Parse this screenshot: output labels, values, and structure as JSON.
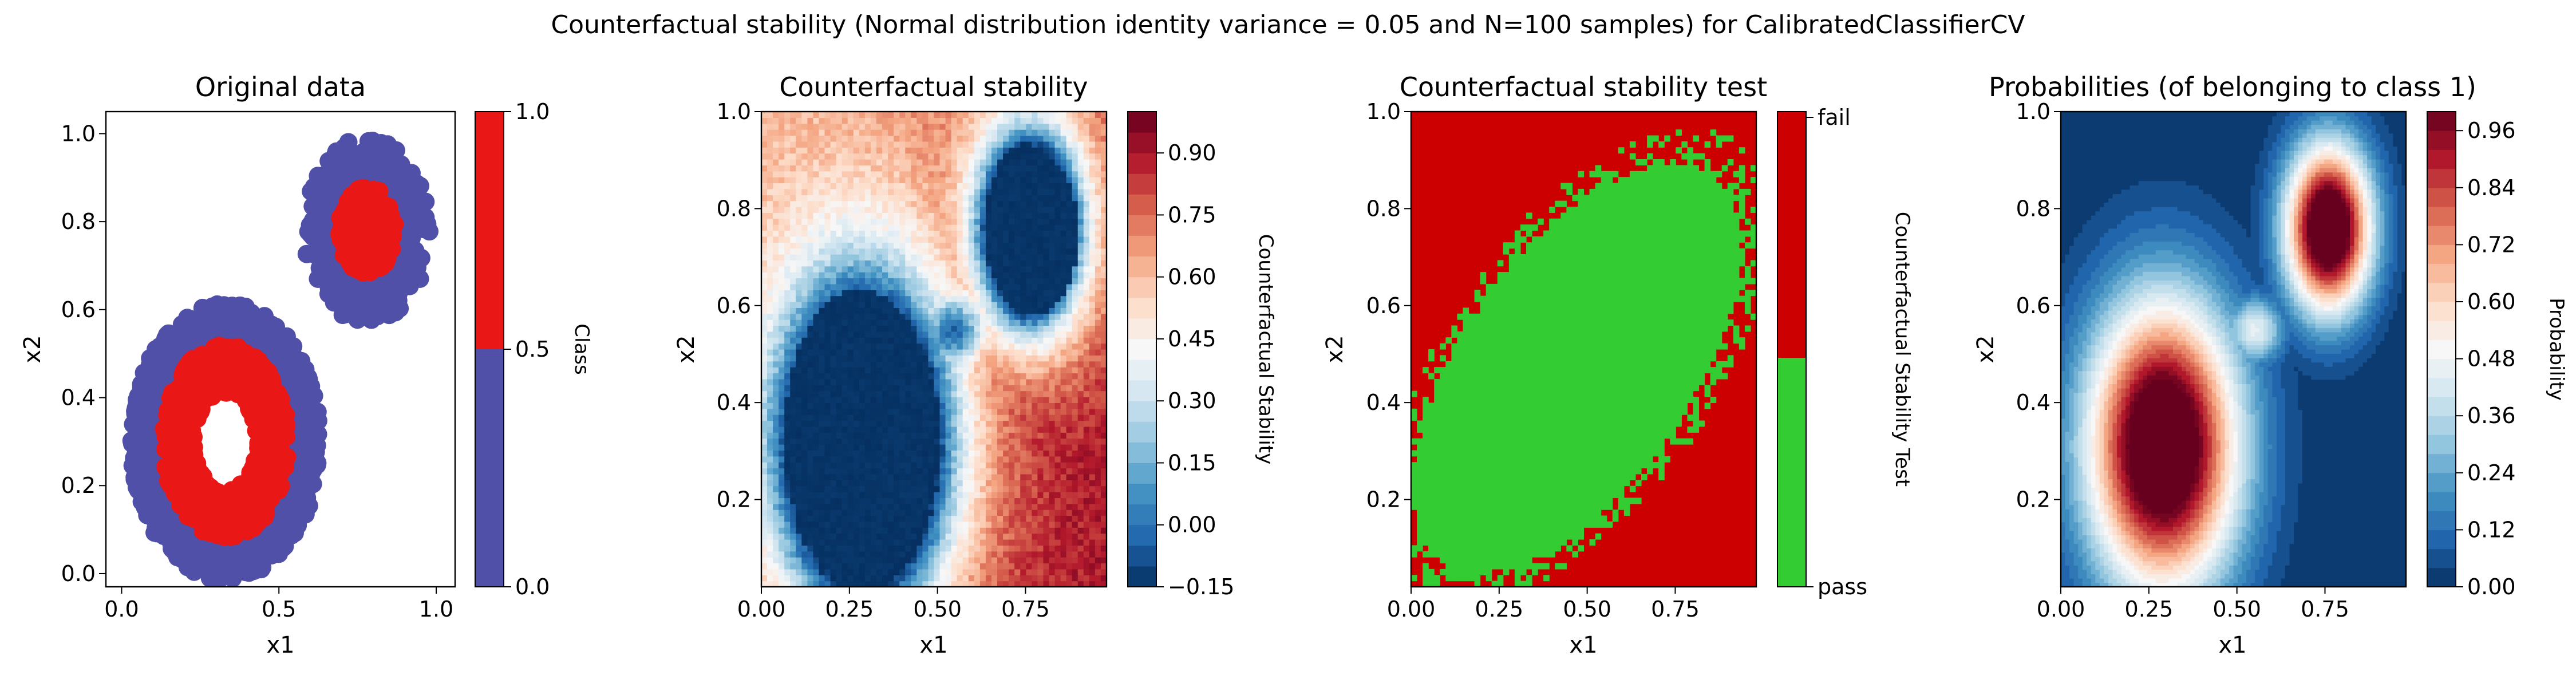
{
  "suptitle": "Counterfactual stability (Normal distribution identity variance = 0.05 and N=100 samples) for CalibratedClassifierCV",
  "colors": {
    "class0": "#5150A8",
    "class1": "#EA1717",
    "fail": "#CC0000",
    "pass": "#33CC33",
    "rdbu": [
      "#053061",
      "#2166ac",
      "#4393c3",
      "#92c5de",
      "#d1e5f0",
      "#f7f7f7",
      "#fddbc7",
      "#f4a582",
      "#d6604d",
      "#b2182b",
      "#67001f"
    ]
  },
  "chart_data": [
    {
      "type": "scatter",
      "title": "Original data",
      "xlabel": "x1",
      "ylabel": "x2",
      "xlim": [
        -0.05,
        1.06
      ],
      "ylim": [
        -0.03,
        1.05
      ],
      "xticks": [
        0.0,
        0.5,
        1.0
      ],
      "xticklabels": [
        "0.0",
        "0.5",
        "1.0"
      ],
      "yticks": [
        0.0,
        0.2,
        0.4,
        0.6,
        0.8,
        1.0
      ],
      "yticklabels": [
        "0.0",
        "0.2",
        "0.4",
        "0.6",
        "0.8",
        "1.0"
      ],
      "clusters": [
        {
          "center": [
            0.33,
            0.3
          ],
          "outer_radius": [
            0.2,
            0.3
          ],
          "inner_radius": [
            0.1,
            0.2
          ],
          "class_outer": 0,
          "class_inner": 1
        },
        {
          "center": [
            0.78,
            0.78
          ],
          "outer_radius": [
            0.08,
            0.2
          ],
          "inner_radius": [
            0.02,
            0.09
          ],
          "class_outer": 0,
          "class_inner": 1
        }
      ],
      "colorbar": {
        "label": "Class",
        "ticks": [
          "0.0",
          "0.5",
          "1.0"
        ]
      }
    },
    {
      "type": "heatmap",
      "title": "Counterfactual stability",
      "xlabel": "x1",
      "ylabel": "x2",
      "xlim": [
        0.0,
        0.98
      ],
      "ylim": [
        0.02,
        1.0
      ],
      "xticks": [
        0.0,
        0.25,
        0.5,
        0.75
      ],
      "xticklabels": [
        "0.00",
        "0.25",
        "0.50",
        "0.75"
      ],
      "yticks": [
        0.2,
        0.4,
        0.6,
        0.8,
        1.0
      ],
      "yticklabels": [
        "0.2",
        "0.4",
        "0.6",
        "0.8",
        "1.0"
      ],
      "value_range": [
        -0.15,
        1.0
      ],
      "colorbar": {
        "label": "Counterfactual Stability",
        "ticks": [
          "−0.15",
          "0.00",
          "0.15",
          "0.30",
          "0.45",
          "0.60",
          "0.75",
          "0.90"
        ]
      }
    },
    {
      "type": "heatmap",
      "title": "Counterfactual stability test",
      "xlabel": "x1",
      "ylabel": "x2",
      "xlim": [
        0.0,
        0.98
      ],
      "ylim": [
        0.02,
        1.0
      ],
      "xticks": [
        0.0,
        0.25,
        0.5,
        0.75
      ],
      "xticklabels": [
        "0.00",
        "0.25",
        "0.50",
        "0.75"
      ],
      "yticks": [
        0.2,
        0.4,
        0.6,
        0.8,
        1.0
      ],
      "yticklabels": [
        "0.2",
        "0.4",
        "0.6",
        "0.8",
        "1.0"
      ],
      "categories": [
        "pass",
        "fail"
      ],
      "colorbar": {
        "label": "Counterfactual Stability Test",
        "ticks": [
          "pass",
          "fail"
        ]
      }
    },
    {
      "type": "heatmap",
      "title": "Probabilities (of belonging to class 1)",
      "xlabel": "x1",
      "ylabel": "x2",
      "xlim": [
        0.0,
        0.98
      ],
      "ylim": [
        0.02,
        1.0
      ],
      "xticks": [
        0.0,
        0.25,
        0.5,
        0.75
      ],
      "xticklabels": [
        "0.00",
        "0.25",
        "0.50",
        "0.75"
      ],
      "yticks": [
        0.2,
        0.4,
        0.6,
        0.8,
        1.0
      ],
      "yticklabels": [
        "0.2",
        "0.4",
        "0.6",
        "0.8",
        "1.0"
      ],
      "value_range": [
        0.0,
        1.0
      ],
      "colorbar": {
        "label": "Probability",
        "ticks": [
          "0.00",
          "0.12",
          "0.24",
          "0.36",
          "0.48",
          "0.60",
          "0.72",
          "0.84",
          "0.96"
        ]
      }
    }
  ]
}
